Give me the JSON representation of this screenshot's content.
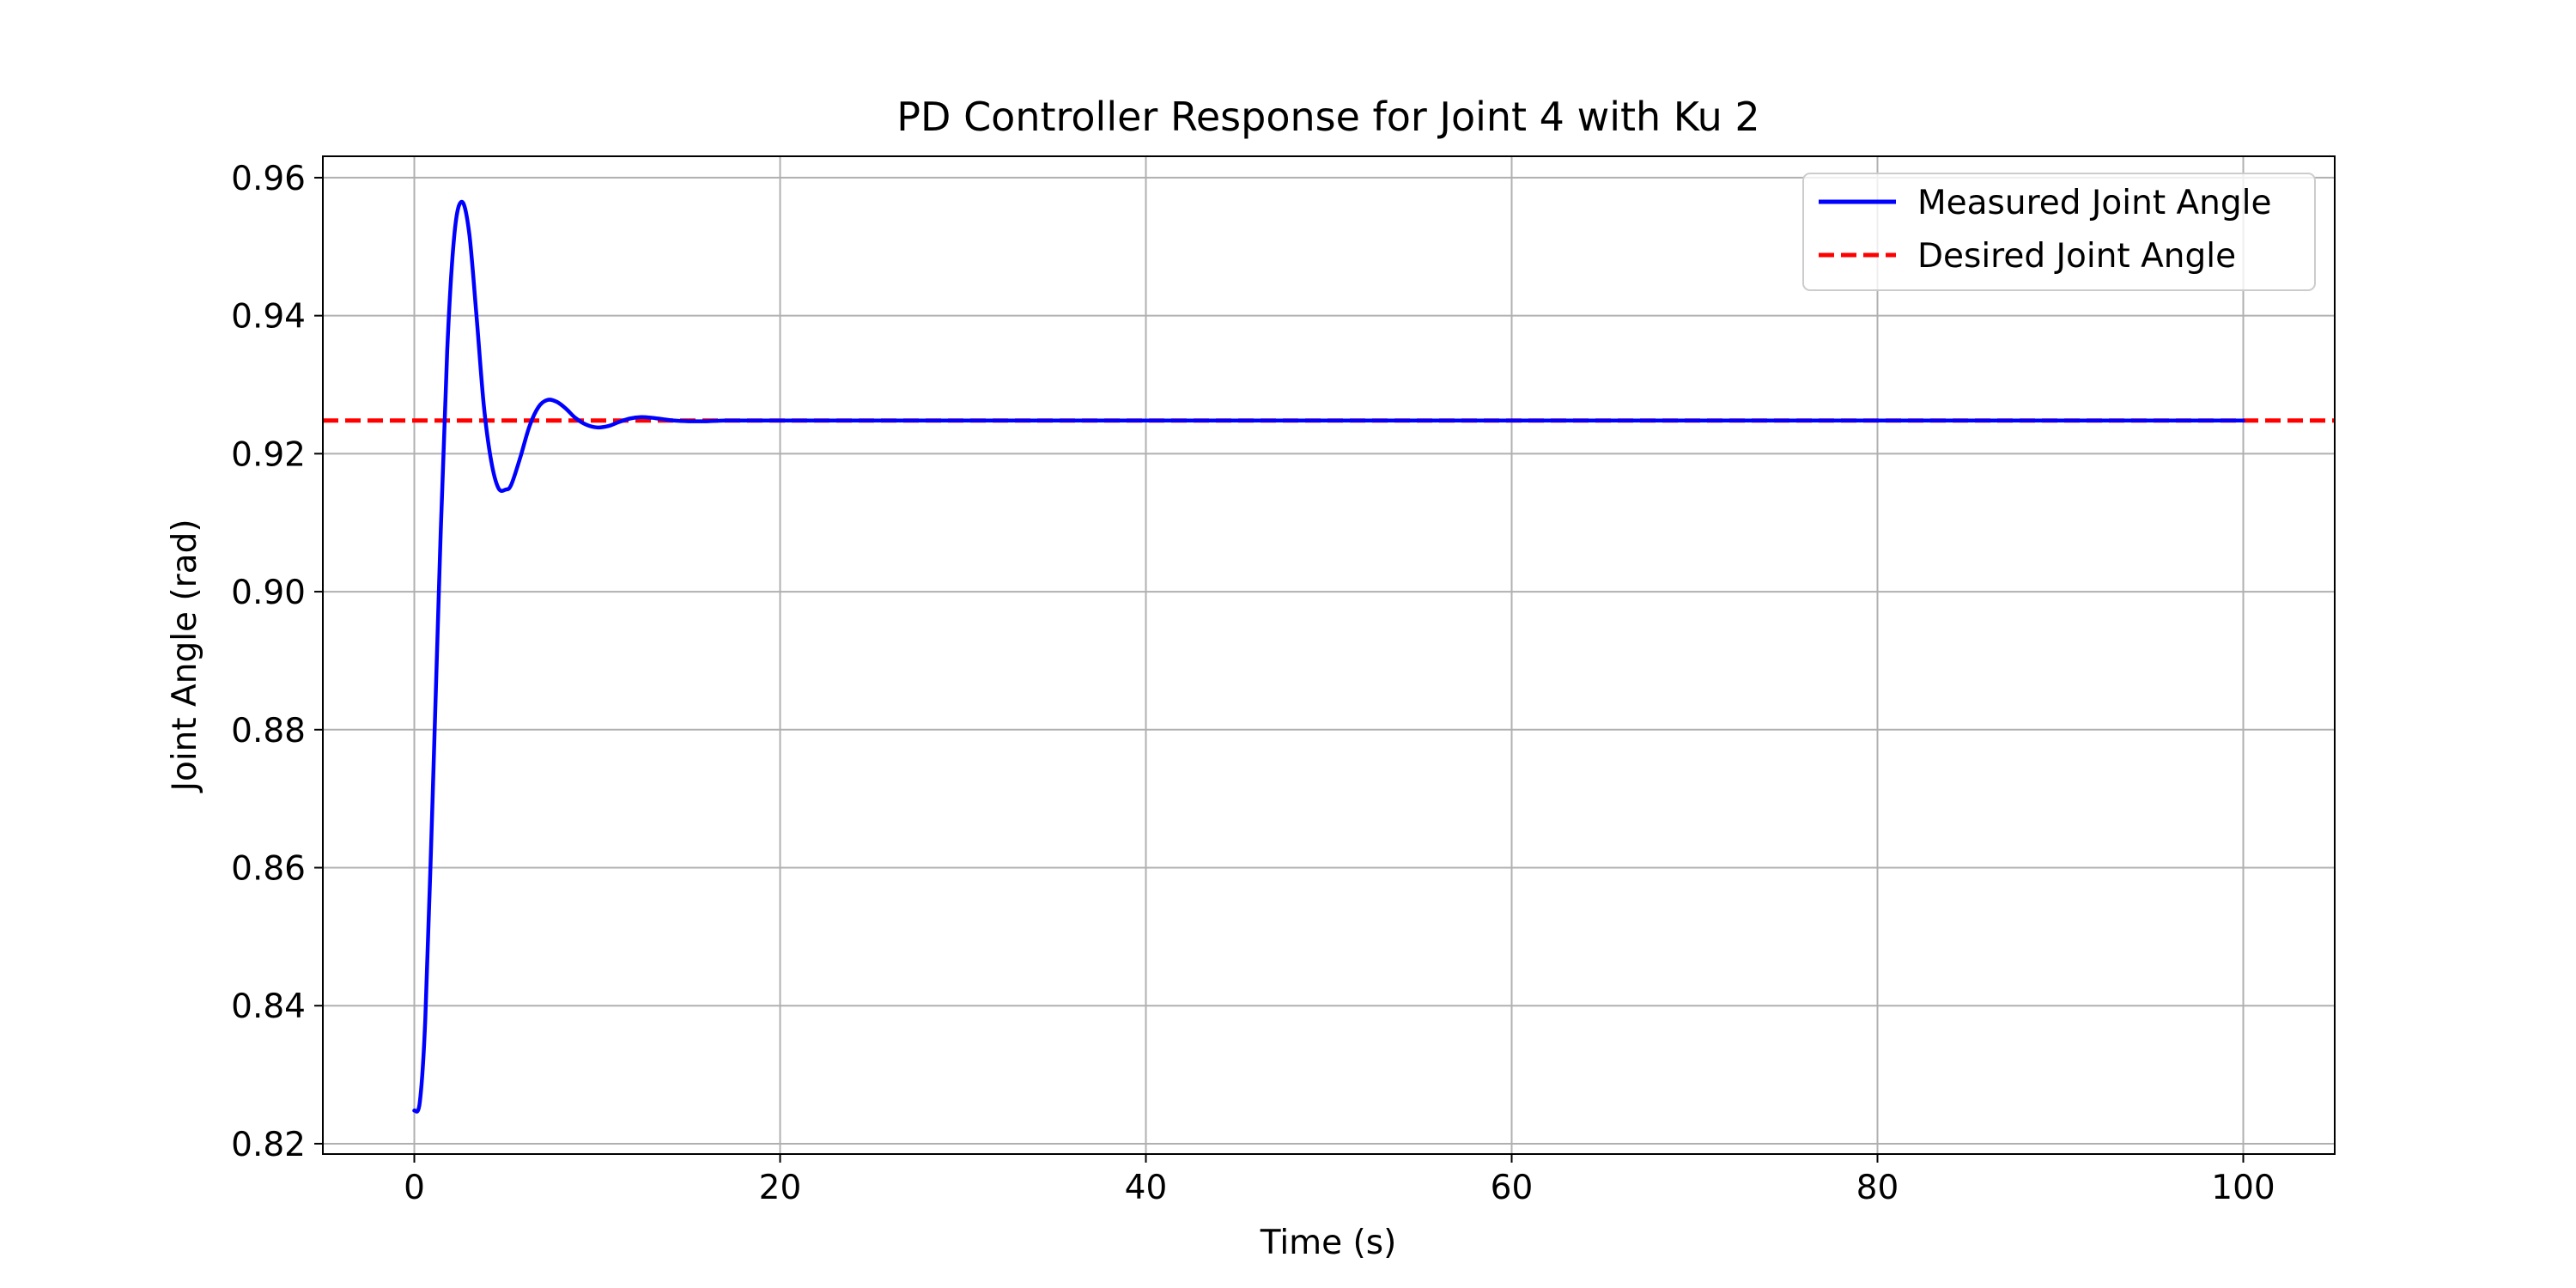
{
  "chart_data": {
    "type": "line",
    "title": "PD Controller Response for Joint 4 with Ku 2",
    "xlabel": "Time (s)",
    "ylabel": "Joint Angle (rad)",
    "xlim": [
      -5,
      105
    ],
    "ylim": [
      0.8185,
      0.9631
    ],
    "x_ticks": [
      0,
      20,
      40,
      60,
      80,
      100
    ],
    "x_tick_labels": [
      "0",
      "20",
      "40",
      "60",
      "80",
      "100"
    ],
    "y_ticks": [
      0.82,
      0.84,
      0.86,
      0.88,
      0.9,
      0.92,
      0.94,
      0.96
    ],
    "y_tick_labels": [
      "0.82",
      "0.84",
      "0.86",
      "0.88",
      "0.90",
      "0.92",
      "0.94",
      "0.96"
    ],
    "grid": true,
    "legend_position": "top-right",
    "series": [
      {
        "name": "Measured Joint Angle",
        "color": "#0000ff",
        "style": "solid",
        "x": [
          0,
          0.3,
          0.6,
          1.0,
          1.4,
          1.8,
          2.2,
          2.6,
          3.0,
          3.4,
          3.8,
          4.2,
          4.6,
          5.0,
          5.3,
          5.8,
          6.3,
          6.8,
          7.3,
          7.8,
          8.3,
          8.8,
          9.4,
          10.0,
          10.6,
          11.2,
          11.8,
          12.4,
          13.0,
          13.6,
          14.2,
          15.0,
          16.0,
          17.0,
          18.0,
          20.0,
          30.0,
          40.0,
          50.0,
          60.0,
          70.0,
          80.0,
          90.0,
          100.0
        ],
        "y": [
          0.8248,
          0.826,
          0.838,
          0.87,
          0.905,
          0.935,
          0.952,
          0.9565,
          0.952,
          0.94,
          0.927,
          0.919,
          0.915,
          0.9148,
          0.9155,
          0.9195,
          0.924,
          0.9268,
          0.9278,
          0.9275,
          0.9265,
          0.9252,
          0.9242,
          0.9238,
          0.924,
          0.9246,
          0.9251,
          0.9253,
          0.9252,
          0.925,
          0.9248,
          0.9247,
          0.9247,
          0.9248,
          0.9248,
          0.9248,
          0.9248,
          0.9248,
          0.9248,
          0.9248,
          0.9248,
          0.9248,
          0.9248,
          0.9248
        ]
      },
      {
        "name": "Desired Joint Angle",
        "color": "#ff0000",
        "style": "dashed",
        "x": [
          -5,
          105
        ],
        "y": [
          0.9248,
          0.9248
        ]
      }
    ]
  }
}
